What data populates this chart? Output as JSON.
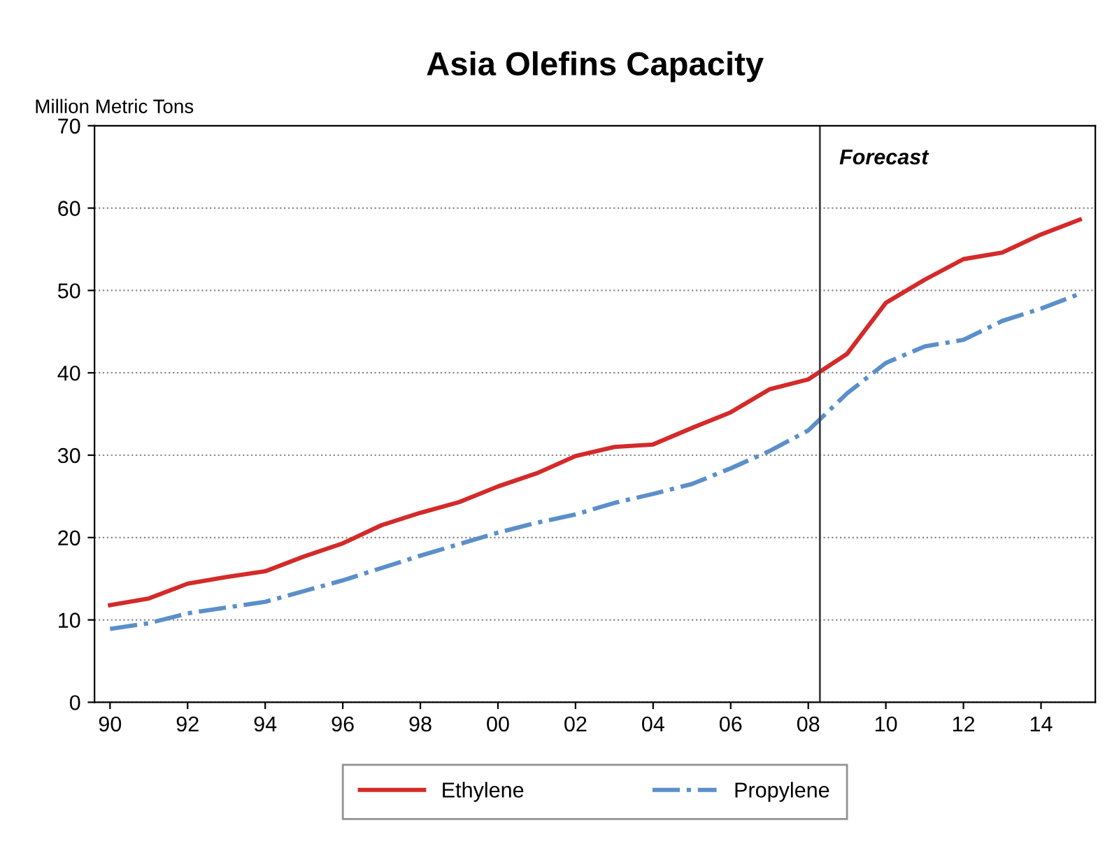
{
  "chart_data": {
    "type": "line",
    "title": "Asia Olefins Capacity",
    "ylabel": "Million Metric Tons",
    "x": [
      1990,
      1991,
      1992,
      1993,
      1994,
      1995,
      1996,
      1997,
      1998,
      1999,
      2000,
      2001,
      2002,
      2003,
      2004,
      2005,
      2006,
      2007,
      2008,
      2009,
      2010,
      2011,
      2012,
      2013,
      2014,
      2015
    ],
    "series": [
      {
        "name": "Ethylene",
        "color": "#d42a2a",
        "line_style": "solid",
        "values": [
          11.8,
          12.6,
          14.4,
          15.2,
          15.9,
          17.7,
          19.3,
          21.5,
          23,
          24.3,
          26.2,
          27.8,
          29.9,
          31,
          31.3,
          33.3,
          35.2,
          38,
          39.2,
          42.3,
          48.5,
          51.3,
          53.8,
          54.6,
          56.8,
          58.6
        ]
      },
      {
        "name": "Propylene",
        "color": "#5b8fc9",
        "line_style": "dashdot",
        "values": [
          8.9,
          9.6,
          10.8,
          11.5,
          12.2,
          13.5,
          14.8,
          16.3,
          17.8,
          19.2,
          20.6,
          21.8,
          22.8,
          24.2,
          25.3,
          26.5,
          28.4,
          30.5,
          33,
          37.5,
          41.2,
          43.2,
          44,
          46.3,
          47.8,
          49.6
        ]
      }
    ],
    "xlim": [
      1989.6,
      2015.4
    ],
    "xticks": [
      {
        "value": 1990,
        "label": "90"
      },
      {
        "value": 1992,
        "label": "92"
      },
      {
        "value": 1994,
        "label": "94"
      },
      {
        "value": 1996,
        "label": "96"
      },
      {
        "value": 1998,
        "label": "98"
      },
      {
        "value": 2000,
        "label": "00"
      },
      {
        "value": 2002,
        "label": "02"
      },
      {
        "value": 2004,
        "label": "04"
      },
      {
        "value": 2006,
        "label": "06"
      },
      {
        "value": 2008,
        "label": "08"
      },
      {
        "value": 2010,
        "label": "10"
      },
      {
        "value": 2012,
        "label": "12"
      },
      {
        "value": 2014,
        "label": "14"
      }
    ],
    "ylim": [
      0,
      70
    ],
    "yticks": [
      0,
      10,
      20,
      30,
      40,
      50,
      60,
      70
    ],
    "grid": "y",
    "legend": "bottom",
    "ref_lines": [
      {
        "axis": "x",
        "value": 2008.3,
        "label": "Forecast",
        "color": "#404040"
      }
    ]
  }
}
